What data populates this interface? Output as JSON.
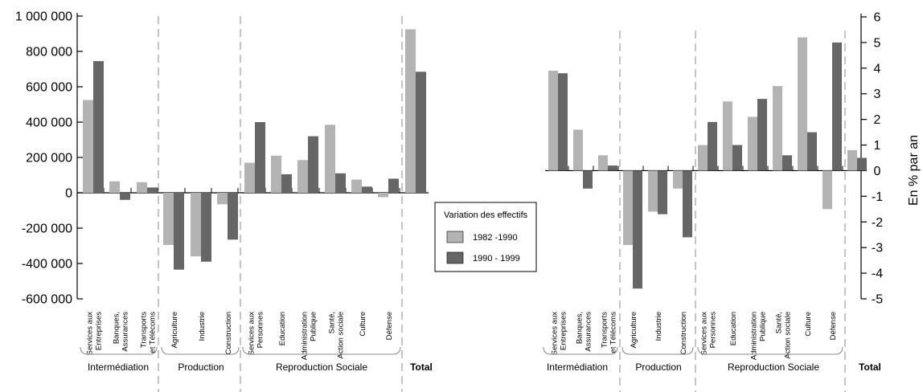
{
  "colors": {
    "series_1982": "#b3b3b3",
    "series_1990": "#666666",
    "axis": "#000000",
    "divider": "#888888"
  },
  "legend": {
    "title": "Variation des effectifs",
    "items": [
      "1982 -1990",
      "1990 - 1999"
    ]
  },
  "groups": [
    "Intermédiation",
    "Production",
    "Reproduction Sociale",
    "Total"
  ],
  "chart_data": [
    {
      "type": "bar",
      "ylim": [
        -600000,
        1000000
      ],
      "yticks": [
        1000000,
        800000,
        600000,
        400000,
        200000,
        0,
        -200000,
        -400000,
        -600000
      ],
      "ytick_labels": [
        "1 000 000",
        "800 000",
        "600 000",
        "400 000",
        "200 000",
        "0",
        "-200 000",
        "-400 000",
        "-600 000"
      ],
      "ylabel": "",
      "categories": [
        [
          "Services aux",
          "Entreprises"
        ],
        [
          "Banques,",
          "Assurances"
        ],
        [
          "Transports",
          "et Télécoms"
        ],
        [
          "Agriculture"
        ],
        [
          "Industrie"
        ],
        [
          "Construction"
        ],
        [
          "Services aux",
          "Personnes"
        ],
        [
          "Education"
        ],
        [
          "Administration",
          "Publique"
        ],
        [
          "Santé,",
          "Action sociale"
        ],
        [
          "Culture"
        ],
        [
          "Défense"
        ],
        []
      ],
      "series": [
        {
          "name": "1982 -1990",
          "values": [
            525000,
            65000,
            60000,
            -295000,
            -360000,
            -65000,
            170000,
            210000,
            185000,
            385000,
            75000,
            -25000,
            925000
          ]
        },
        {
          "name": "1990 - 1999",
          "values": [
            745000,
            -40000,
            30000,
            -435000,
            -390000,
            -265000,
            400000,
            105000,
            320000,
            110000,
            35000,
            80000,
            685000
          ]
        }
      ]
    },
    {
      "type": "bar",
      "ylim": [
        -5,
        6
      ],
      "yticks": [
        6,
        5,
        4,
        3,
        2,
        1,
        0,
        -1,
        -2,
        -3,
        -4,
        -5
      ],
      "ytick_labels": [
        "6",
        "5",
        "4",
        "3",
        "2",
        "1",
        "0",
        "-1",
        "-2",
        "-3",
        "-4",
        "-5"
      ],
      "ylabel": "En % par an",
      "categories": [
        [
          "Services aux",
          "Entreprises"
        ],
        [
          "Banques,",
          "Assurances"
        ],
        [
          "Transports",
          "et Télécoms"
        ],
        [
          "Agriculture"
        ],
        [
          "Industrie"
        ],
        [
          "Construction"
        ],
        [
          "Services aux",
          "Personnes"
        ],
        [
          "Education"
        ],
        [
          "Administration",
          "Publique"
        ],
        [
          "Santé,",
          "Action sociale"
        ],
        [
          "Culture"
        ],
        [
          "Défense"
        ],
        []
      ],
      "series": [
        {
          "name": "1982 -1990",
          "values": [
            3.9,
            1.6,
            0.6,
            -2.9,
            -1.6,
            -0.7,
            1.0,
            2.7,
            2.1,
            3.3,
            5.2,
            -1.5,
            0.8
          ]
        },
        {
          "name": "1990 - 1999",
          "values": [
            3.8,
            -0.7,
            0.2,
            -4.6,
            -1.7,
            -2.6,
            1.9,
            1.0,
            2.8,
            0.6,
            1.5,
            5.0,
            0.5
          ]
        }
      ]
    }
  ]
}
